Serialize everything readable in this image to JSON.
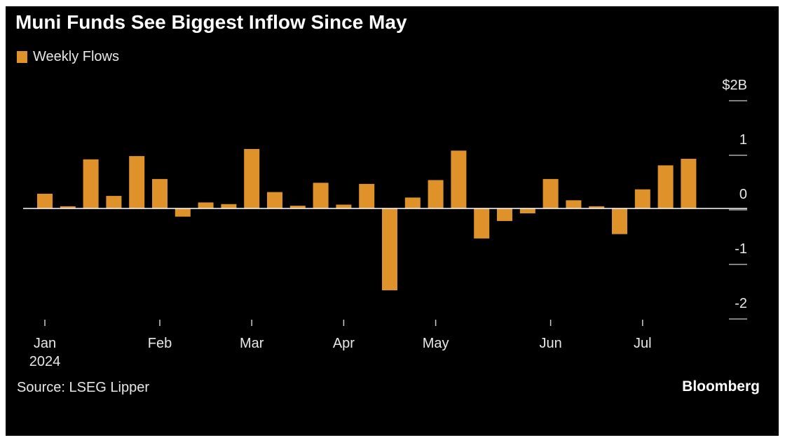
{
  "title": "Muni Funds See Biggest Inflow Since May",
  "legend": {
    "label": "Weekly Flows",
    "color": "#e0922a"
  },
  "source": "Source: LSEG Lipper",
  "brand": "Bloomberg",
  "chart_data": {
    "type": "bar",
    "title": "Muni Funds See Biggest Inflow Since May",
    "series": [
      {
        "name": "Weekly Flows",
        "color": "#e0922a",
        "values": [
          0.27,
          0.04,
          0.9,
          0.23,
          0.96,
          0.54,
          -0.15,
          0.11,
          0.08,
          1.09,
          0.3,
          0.05,
          0.47,
          0.07,
          0.45,
          -1.5,
          0.2,
          0.52,
          1.06,
          -0.55,
          -0.23,
          -0.09,
          0.54,
          0.15,
          0.04,
          -0.47,
          0.35,
          0.79,
          0.91
        ]
      }
    ],
    "ylim": [
      -2,
      2
    ],
    "yticks": [
      2,
      1,
      0,
      -1,
      -2
    ],
    "ytick_labels": [
      "$2B",
      "1",
      "0",
      "-1",
      "-2"
    ],
    "xticks": [
      {
        "label": "Jan",
        "sublabel": "2024",
        "bar_index": 0
      },
      {
        "label": "Feb",
        "sublabel": "",
        "bar_index": 5
      },
      {
        "label": "Mar",
        "sublabel": "",
        "bar_index": 9
      },
      {
        "label": "Apr",
        "sublabel": "",
        "bar_index": 13
      },
      {
        "label": "May",
        "sublabel": "",
        "bar_index": 17
      },
      {
        "label": "Jun",
        "sublabel": "",
        "bar_index": 22
      },
      {
        "label": "Jul",
        "sublabel": "",
        "bar_index": 26
      }
    ],
    "y_axis_position": "right",
    "grid": false,
    "zero_line": true,
    "legend_position": "top-left"
  }
}
